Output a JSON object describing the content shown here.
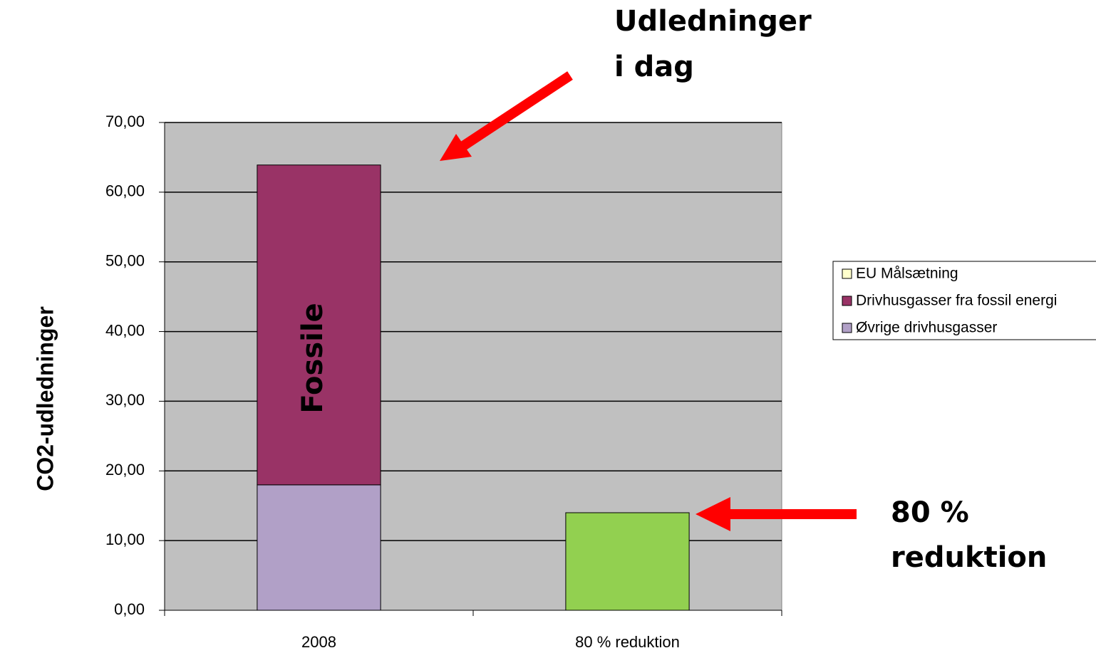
{
  "chart_data": {
    "type": "stacked_bar",
    "y_label": "CO2-udledninger",
    "categories": [
      "2008",
      "80 % reduktion"
    ],
    "series": [
      {
        "name": "EU Målsætning",
        "color": "#ffffcc",
        "colors": [
          "#ffffcc",
          "#92d050"
        ],
        "values": [
          null,
          14.0
        ]
      },
      {
        "name": "Drivhusgasser fra fossil energi",
        "color": "#993366",
        "values": [
          45.9,
          null
        ]
      },
      {
        "name": "Øvrige drivhusgasser",
        "color": "#b1a0c7",
        "values": [
          18.0,
          null
        ]
      }
    ],
    "ylim": [
      0,
      70
    ],
    "yticks": [
      {
        "value": 0,
        "label": "0,00"
      },
      {
        "value": 10,
        "label": "10,00"
      },
      {
        "value": 20,
        "label": "20,00"
      },
      {
        "value": 30,
        "label": "30,00"
      },
      {
        "value": 40,
        "label": "40,00"
      },
      {
        "value": 50,
        "label": "50,00"
      },
      {
        "value": 60,
        "label": "60,00"
      },
      {
        "value": 70,
        "label": "70,00"
      }
    ],
    "grid": true,
    "legend": "right",
    "annotations": [
      "Udledninger",
      "i dag",
      "80 %",
      "reduktion",
      "Fossile"
    ]
  }
}
